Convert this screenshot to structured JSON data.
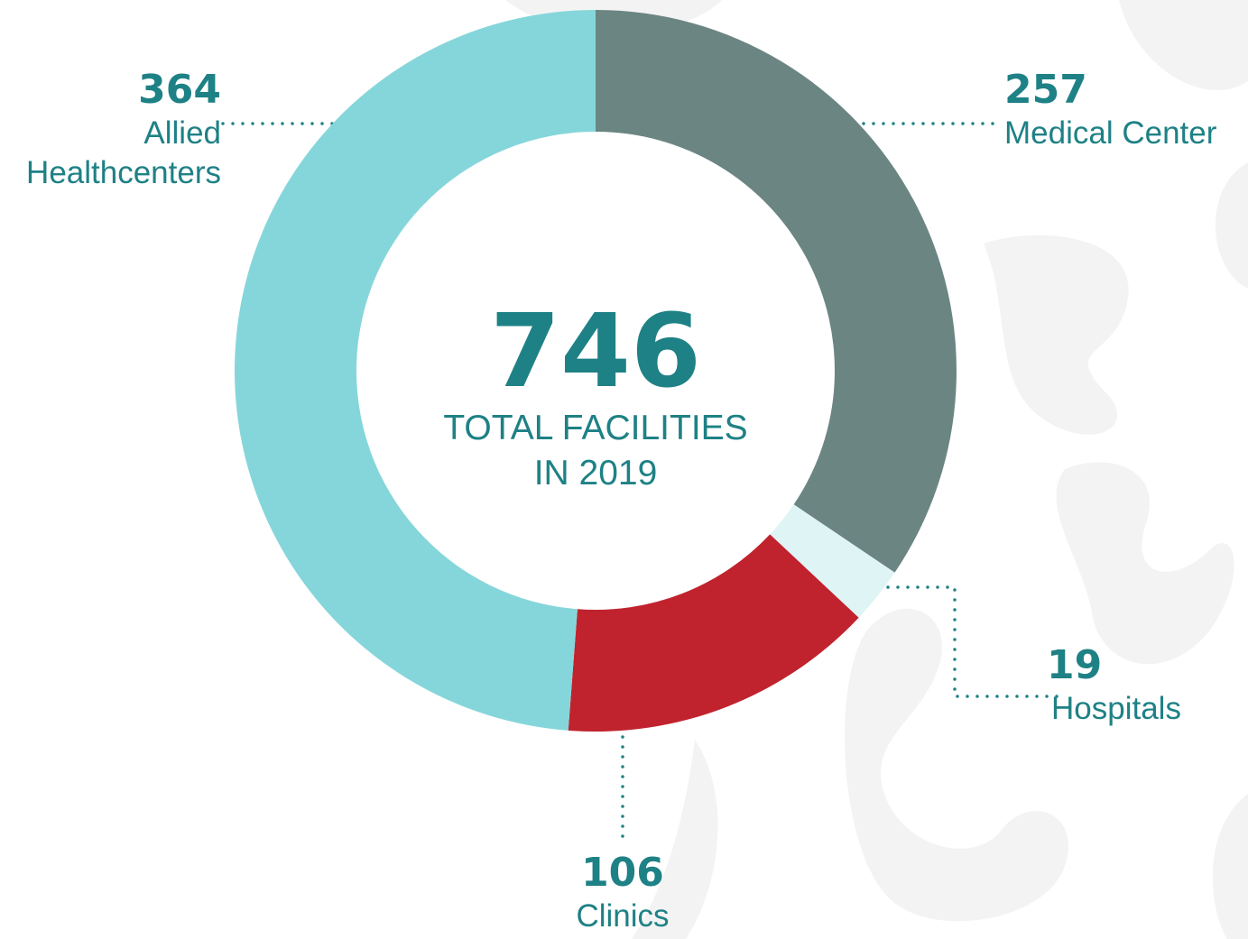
{
  "chart_data": {
    "type": "donut",
    "categories": [
      "Medical Center",
      "Hospitals",
      "Clinics",
      "Allied Healthcenters"
    ],
    "values": [
      257,
      19,
      106,
      364
    ],
    "colors": [
      "#6b8583",
      "#dff4f5",
      "#c0232e",
      "#85d6da"
    ],
    "center_value": 746,
    "center_label": "TOTAL FACILITIES IN 2019"
  }
}
